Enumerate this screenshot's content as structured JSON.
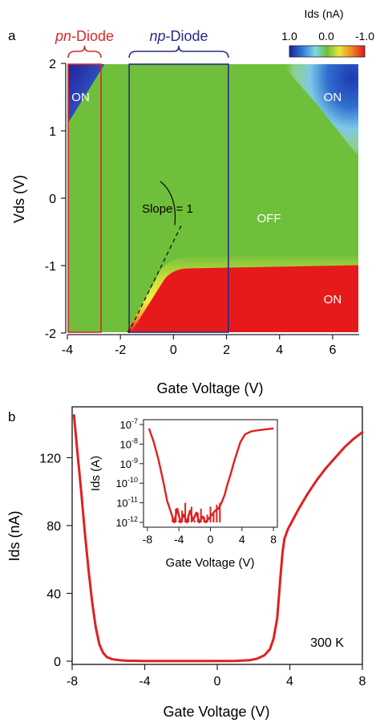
{
  "panels": [
    {
      "panel_label": "a",
      "chart_data": {
        "type": "heatmap",
        "xlabel": "Gate Voltage (V)",
        "ylabel": "Vds (V)",
        "xlim": [
          -4,
          7
        ],
        "ylim": [
          -2,
          2
        ],
        "xticks": [
          -4,
          -2,
          0,
          2,
          4,
          6
        ],
        "yticks": [
          -2,
          -1,
          0,
          1,
          2
        ],
        "colorbar": {
          "title": "Ids (nA)",
          "min_label": "1.0",
          "mid_label": "0.0",
          "max_label": "-1.0",
          "range": [
            1.0,
            -1.0
          ]
        },
        "regions": [
          {
            "label": "ON",
            "vg": -3.5,
            "vds": 1.5,
            "ids_nA": 1.0
          },
          {
            "label": "ON",
            "vg": 6.0,
            "vds": 1.5,
            "ids_nA": 1.0
          },
          {
            "label": "OFF",
            "vg": 3.6,
            "vds": -0.3,
            "ids_nA": 0.0
          },
          {
            "label": "ON",
            "vg": 6.0,
            "vds": -1.5,
            "ids_nA": -1.0
          }
        ],
        "boxes": [
          {
            "title_italic": "pn",
            "title_rest": "-Diode",
            "vg_range": [
              -4,
              -2.7
            ],
            "vds_range": [
              -2,
              2
            ],
            "color": "#d62a2a"
          },
          {
            "title_italic": "np",
            "title_rest": "-Diode",
            "vg_range": [
              -1.7,
              2.1
            ],
            "vds_range": [
              -2,
              2
            ],
            "color": "#2a2a8c"
          }
        ],
        "slope_annotation": {
          "text": "Slope = 1",
          "line_from": [
            -1.7,
            -2.0
          ],
          "line_to": [
            0.3,
            -0.4
          ]
        },
        "boundaries": {
          "lower_on_edge_vds": -0.97,
          "upper_right_on_from_vg": 5.0,
          "upper_left_on_to_vg": -2.7
        }
      }
    },
    {
      "panel_label": "b",
      "chart_data": {
        "type": "line",
        "xlabel": "Gate Voltage (V)",
        "ylabel": "Ids (nA)",
        "xlim": [
          -8,
          8
        ],
        "ylim": [
          0,
          150
        ],
        "xticks": [
          -8,
          -4,
          0,
          4,
          8
        ],
        "yticks": [
          0,
          40,
          80,
          120
        ],
        "annotation": "300 K",
        "series": [
          {
            "color": "#e02020",
            "x": [
              -7.9,
              -7.7,
              -7.5,
              -7.3,
              -7.1,
              -6.9,
              -6.7,
              -6.5,
              -6.3,
              -6.1,
              -5.8,
              -5.4,
              -5.0,
              -4.0,
              -2.0,
              0.0,
              1.0,
              1.8,
              2.2,
              2.6,
              2.9,
              3.1,
              3.3,
              3.4,
              3.5,
              3.6,
              3.7,
              3.9,
              4.1,
              4.5,
              5.0,
              5.5,
              6.0,
              6.5,
              7.0,
              7.5,
              8.0
            ],
            "y": [
              145,
              122,
              100,
              76,
              54,
              35,
              20,
              10,
              5,
              2.5,
              1.2,
              0.6,
              0.3,
              0.1,
              0.1,
              0.1,
              0.2,
              0.6,
              1.5,
              3.5,
              7,
              13,
              25,
              38,
              52,
              64,
              72,
              78,
              82,
              90,
              99,
              107,
              114,
              120,
              126,
              131,
              135
            ]
          }
        ],
        "inset": {
          "type": "line",
          "xlabel": "Gate Voltage (V)",
          "ylabel": "Ids (A)",
          "yscale": "log",
          "xlim": [
            -8.5,
            8.5
          ],
          "ylim_exp": [
            -12,
            -7
          ],
          "xticks": [
            -8,
            -4,
            0,
            4,
            8
          ],
          "ytick_labels": [
            {
              "exp": -7,
              "base": "10",
              "sup": "-7"
            },
            {
              "exp": -8,
              "base": "10",
              "sup": "-8"
            },
            {
              "exp": -9,
              "base": "10",
              "sup": "-9"
            },
            {
              "exp": -10,
              "base": "10",
              "sup": "-10"
            },
            {
              "exp": -11,
              "base": "10",
              "sup": "-11"
            },
            {
              "exp": -12,
              "base": "10",
              "sup": "-12"
            }
          ],
          "series": [
            {
              "color": "#e02020",
              "x": [
                -7.8,
                -7.2,
                -6.6,
                -6.0,
                -5.5,
                -5.0,
                -4.6,
                -4.2,
                -3.8,
                -3.4,
                -3.0,
                -2.6,
                -2.2,
                -1.8,
                -1.4,
                -1.0,
                -0.6,
                -0.2,
                0.2,
                0.6,
                1.0,
                1.4,
                1.8,
                2.2,
                2.6,
                3.0,
                3.4,
                3.8,
                4.4,
                5.2,
                6.0,
                7.0,
                8.0
              ],
              "logy": [
                -7.2,
                -7.9,
                -8.8,
                -9.9,
                -10.9,
                -11.5,
                -12.0,
                -11.3,
                -12.0,
                -11.6,
                -12.0,
                -11.4,
                -11.9,
                -11.5,
                -12.0,
                -11.7,
                -12.0,
                -11.8,
                -11.6,
                -11.4,
                -11.3,
                -11.0,
                -10.6,
                -10.0,
                -9.5,
                -8.9,
                -8.4,
                -7.9,
                -7.5,
                -7.35,
                -7.3,
                -7.25,
                -7.2
              ]
            },
            {
              "color": "#e02020",
              "noise_x": [
                -4.8,
                -4.4,
                -4.0,
                -3.6,
                -3.2,
                -2.8,
                -2.4,
                -2.0,
                -1.6,
                -1.2,
                -0.8,
                -0.4,
                0.0,
                0.4,
                0.8,
                1.2
              ],
              "noise_top_logy": [
                -11.8,
                -11.3,
                -11.9,
                -11.4,
                -11.0,
                -11.6,
                -11.2,
                -11.9,
                -11.5,
                -11.3,
                -11.7,
                -11.6,
                -11.2,
                -11.5,
                -11.1,
                -11.0
              ]
            }
          ]
        }
      }
    }
  ]
}
